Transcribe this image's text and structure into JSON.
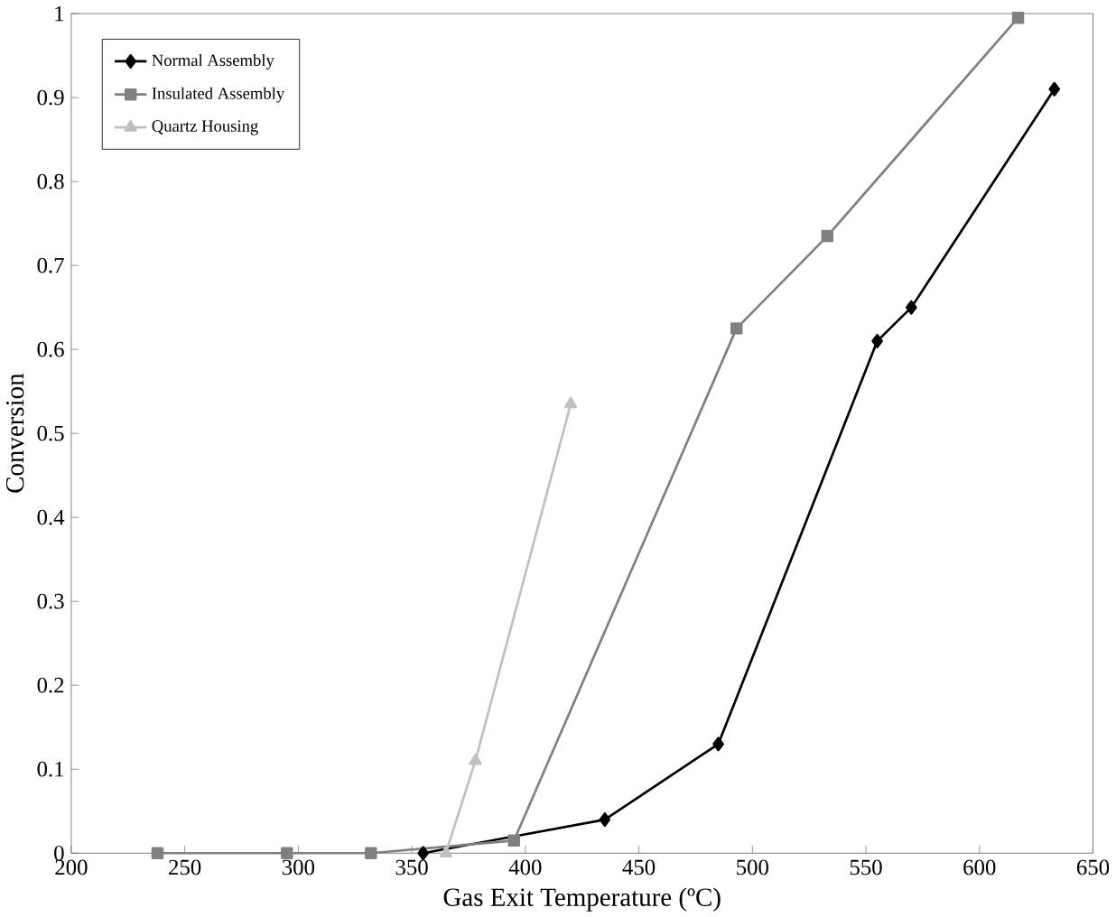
{
  "chart_data": {
    "type": "line",
    "xlabel": "Gas Exit Temperature (ºC)",
    "ylabel": "Conversion",
    "xlim": [
      200,
      650
    ],
    "xticks": [
      200,
      250,
      300,
      350,
      400,
      450,
      500,
      550,
      600,
      650
    ],
    "ylim": [
      0,
      1
    ],
    "yticks": [
      0,
      0.1,
      0.2,
      0.3,
      0.4,
      0.5,
      0.6,
      0.7,
      0.8,
      0.9,
      1
    ],
    "grid": false,
    "legend": "top left",
    "line_style": "solid",
    "series": [
      {
        "name": "Normal Assembly",
        "color": "#000000",
        "marker": "diamond",
        "x": [
          355,
          435,
          485,
          555,
          570,
          633
        ],
        "values": [
          0,
          0.04,
          0.13,
          0.61,
          0.65,
          0.91
        ]
      },
      {
        "name": "Insulated Assembly",
        "color": "#808080",
        "marker": "square",
        "x": [
          238,
          295,
          332,
          395,
          493,
          533,
          617
        ],
        "values": [
          0,
          0,
          0,
          0.015,
          0.625,
          0.735,
          0.995
        ]
      },
      {
        "name": "Quartz Housing",
        "color": "#c0c0c0",
        "marker": "triangle",
        "x": [
          365,
          378,
          420
        ],
        "values": [
          0,
          0.11,
          0.535
        ]
      }
    ]
  }
}
